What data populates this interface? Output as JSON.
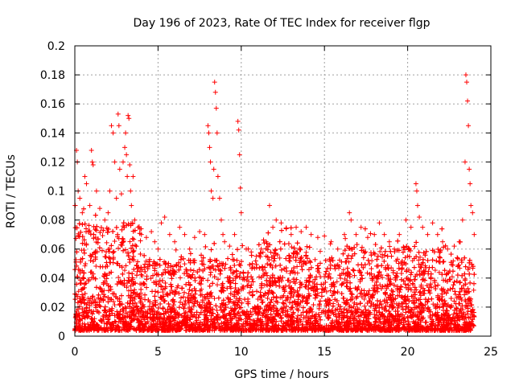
{
  "chart_data": {
    "type": "scatter",
    "title": "Day 196 of 2023, Rate Of TEC Index for receiver flgp",
    "xlabel": "GPS time / hours",
    "ylabel": "ROTI / TECUs",
    "xlim": [
      0,
      25
    ],
    "ylim": [
      0,
      0.2
    ],
    "x_ticks": [
      0,
      5,
      10,
      15,
      20,
      25
    ],
    "x_tick_labels": [
      "0",
      "5",
      "10",
      "15",
      "20",
      "25"
    ],
    "y_ticks": [
      0,
      0.02,
      0.04,
      0.06,
      0.08,
      0.1,
      0.12,
      0.14,
      0.16,
      0.18,
      0.2
    ],
    "y_tick_labels": [
      "0",
      "0.02",
      "0.04",
      "0.06",
      "0.08",
      "0.1",
      "0.12",
      "0.14",
      "0.16",
      "0.18",
      "0.2"
    ],
    "grid": true,
    "marker": "+",
    "color": "#ff0000",
    "series": [
      {
        "name": "ROTI",
        "points": [
          [
            0.1,
            0.128
          ],
          [
            0.15,
            0.12
          ],
          [
            0.2,
            0.1
          ],
          [
            0.3,
            0.095
          ],
          [
            0.45,
            0.085
          ],
          [
            0.6,
            0.11
          ],
          [
            0.7,
            0.105
          ],
          [
            0.9,
            0.09
          ],
          [
            1.0,
            0.128
          ],
          [
            1.05,
            0.12
          ],
          [
            1.1,
            0.118
          ],
          [
            1.3,
            0.1
          ],
          [
            1.5,
            0.088
          ],
          [
            1.8,
            0.08
          ],
          [
            2.0,
            0.085
          ],
          [
            2.1,
            0.1
          ],
          [
            2.2,
            0.145
          ],
          [
            2.3,
            0.14
          ],
          [
            2.4,
            0.12
          ],
          [
            2.5,
            0.095
          ],
          [
            2.6,
            0.153
          ],
          [
            2.65,
            0.145
          ],
          [
            2.7,
            0.115
          ],
          [
            2.8,
            0.098
          ],
          [
            2.9,
            0.12
          ],
          [
            3.0,
            0.13
          ],
          [
            3.05,
            0.14
          ],
          [
            3.1,
            0.125
          ],
          [
            3.15,
            0.11
          ],
          [
            3.2,
            0.152
          ],
          [
            3.25,
            0.15
          ],
          [
            3.3,
            0.118
          ],
          [
            3.35,
            0.1
          ],
          [
            3.4,
            0.09
          ],
          [
            3.5,
            0.11
          ],
          [
            3.6,
            0.08
          ],
          [
            3.8,
            0.075
          ],
          [
            4.0,
            0.07
          ],
          [
            4.3,
            0.068
          ],
          [
            4.6,
            0.072
          ],
          [
            4.8,
            0.065
          ],
          [
            5.0,
            0.06
          ],
          [
            5.2,
            0.078
          ],
          [
            5.4,
            0.082
          ],
          [
            5.7,
            0.07
          ],
          [
            6.0,
            0.065
          ],
          [
            6.3,
            0.075
          ],
          [
            6.6,
            0.07
          ],
          [
            6.9,
            0.06
          ],
          [
            7.2,
            0.068
          ],
          [
            7.5,
            0.072
          ],
          [
            7.8,
            0.07
          ],
          [
            8.0,
            0.145
          ],
          [
            8.05,
            0.14
          ],
          [
            8.1,
            0.13
          ],
          [
            8.15,
            0.12
          ],
          [
            8.2,
            0.1
          ],
          [
            8.3,
            0.095
          ],
          [
            8.35,
            0.115
          ],
          [
            8.4,
            0.175
          ],
          [
            8.45,
            0.168
          ],
          [
            8.5,
            0.157
          ],
          [
            8.55,
            0.14
          ],
          [
            8.6,
            0.11
          ],
          [
            8.7,
            0.095
          ],
          [
            8.8,
            0.08
          ],
          [
            8.9,
            0.07
          ],
          [
            9.0,
            0.065
          ],
          [
            9.3,
            0.062
          ],
          [
            9.6,
            0.07
          ],
          [
            9.8,
            0.148
          ],
          [
            9.85,
            0.142
          ],
          [
            9.9,
            0.125
          ],
          [
            9.95,
            0.102
          ],
          [
            10.0,
            0.085
          ],
          [
            10.3,
            0.06
          ],
          [
            10.6,
            0.058
          ],
          [
            10.9,
            0.055
          ],
          [
            11.2,
            0.06
          ],
          [
            11.5,
            0.065
          ],
          [
            11.7,
            0.09
          ],
          [
            11.9,
            0.075
          ],
          [
            12.1,
            0.08
          ],
          [
            12.4,
            0.078
          ],
          [
            12.7,
            0.074
          ],
          [
            13.0,
            0.07
          ],
          [
            13.3,
            0.075
          ],
          [
            13.6,
            0.072
          ],
          [
            13.9,
            0.075
          ],
          [
            14.2,
            0.07
          ],
          [
            14.6,
            0.068
          ],
          [
            15.0,
            0.069
          ],
          [
            15.4,
            0.065
          ],
          [
            15.8,
            0.06
          ],
          [
            16.2,
            0.07
          ],
          [
            16.5,
            0.085
          ],
          [
            16.6,
            0.08
          ],
          [
            16.9,
            0.07
          ],
          [
            17.2,
            0.075
          ],
          [
            17.6,
            0.068
          ],
          [
            18.0,
            0.07
          ],
          [
            18.3,
            0.078
          ],
          [
            18.6,
            0.07
          ],
          [
            18.9,
            0.065
          ],
          [
            19.2,
            0.06
          ],
          [
            19.5,
            0.07
          ],
          [
            19.9,
            0.08
          ],
          [
            20.2,
            0.075
          ],
          [
            20.5,
            0.105
          ],
          [
            20.55,
            0.1
          ],
          [
            20.6,
            0.09
          ],
          [
            20.7,
            0.082
          ],
          [
            20.9,
            0.075
          ],
          [
            21.2,
            0.07
          ],
          [
            21.5,
            0.078
          ],
          [
            21.8,
            0.07
          ],
          [
            22.1,
            0.065
          ],
          [
            22.4,
            0.06
          ],
          [
            22.8,
            0.062
          ],
          [
            23.1,
            0.065
          ],
          [
            23.3,
            0.08
          ],
          [
            23.45,
            0.12
          ],
          [
            23.5,
            0.18
          ],
          [
            23.55,
            0.175
          ],
          [
            23.6,
            0.162
          ],
          [
            23.65,
            0.145
          ],
          [
            23.7,
            0.115
          ],
          [
            23.75,
            0.105
          ],
          [
            23.8,
            0.09
          ],
          [
            23.9,
            0.085
          ],
          [
            24.0,
            0.07
          ]
        ]
      }
    ]
  }
}
